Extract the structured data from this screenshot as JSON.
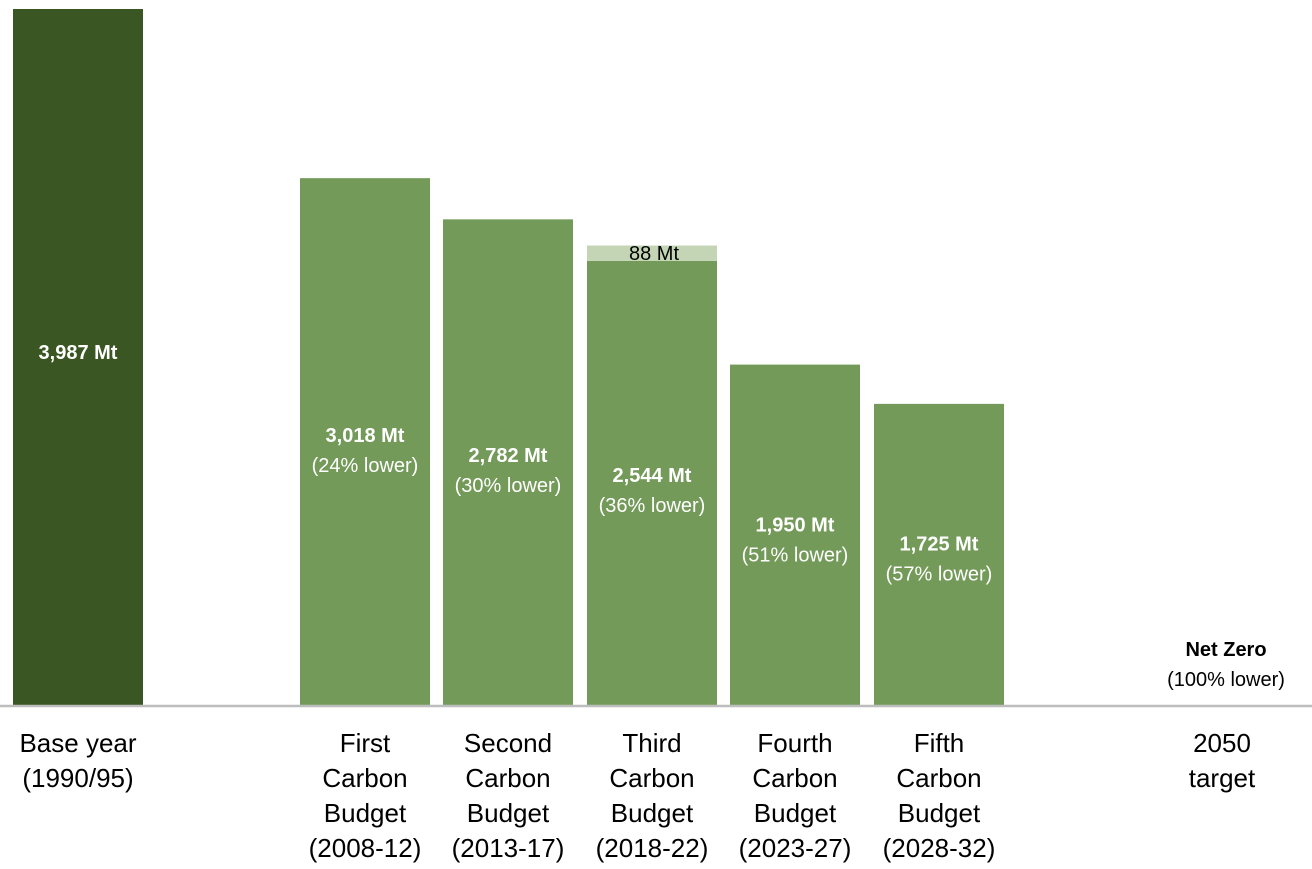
{
  "chart_data": {
    "type": "bar",
    "title": "",
    "xlabel": "",
    "ylabel": "",
    "unit": "Mt",
    "ylim": [
      0,
      3987
    ],
    "grid": false,
    "legend": "none",
    "colors": {
      "base": "#3a5622",
      "budget": "#739a59",
      "extra": "#c3d5b5",
      "axis": "#bdbdbd"
    },
    "categories": [
      {
        "lines": [
          "Base year",
          "(1990/95)"
        ]
      },
      {
        "lines": [
          "First",
          "Carbon",
          "Budget",
          "(2008-12)"
        ]
      },
      {
        "lines": [
          "Second",
          "Carbon",
          "Budget",
          "(2013-17)"
        ]
      },
      {
        "lines": [
          "Third",
          "Carbon",
          "Budget",
          "(2018-22)"
        ]
      },
      {
        "lines": [
          "Fourth",
          "Carbon",
          "Budget",
          "(2023-27)"
        ]
      },
      {
        "lines": [
          "Fifth",
          "Carbon",
          "Budget",
          "(2028-32)"
        ]
      },
      {
        "lines": [
          "2050",
          "target"
        ]
      }
    ],
    "bars": [
      {
        "value": 3987,
        "kind": "base",
        "label": "3,987 Mt",
        "sublabel": ""
      },
      {
        "value": 3018,
        "kind": "budget",
        "label": "3,018 Mt",
        "sublabel": "(24% lower)"
      },
      {
        "value": 2782,
        "kind": "budget",
        "label": "2,782 Mt",
        "sublabel": "(30% lower)"
      },
      {
        "value": 2544,
        "kind": "budget",
        "label": "2,544 Mt",
        "sublabel": "(36% lower)",
        "extra": 88,
        "extra_label": "88 Mt"
      },
      {
        "value": 1950,
        "kind": "budget",
        "label": "1,950 Mt",
        "sublabel": "(51% lower)"
      },
      {
        "value": 1725,
        "kind": "budget",
        "label": "1,725 Mt",
        "sublabel": "(57% lower)"
      },
      {
        "value": 0,
        "kind": "target",
        "label": "Net Zero",
        "sublabel": "(100% lower)"
      }
    ]
  }
}
